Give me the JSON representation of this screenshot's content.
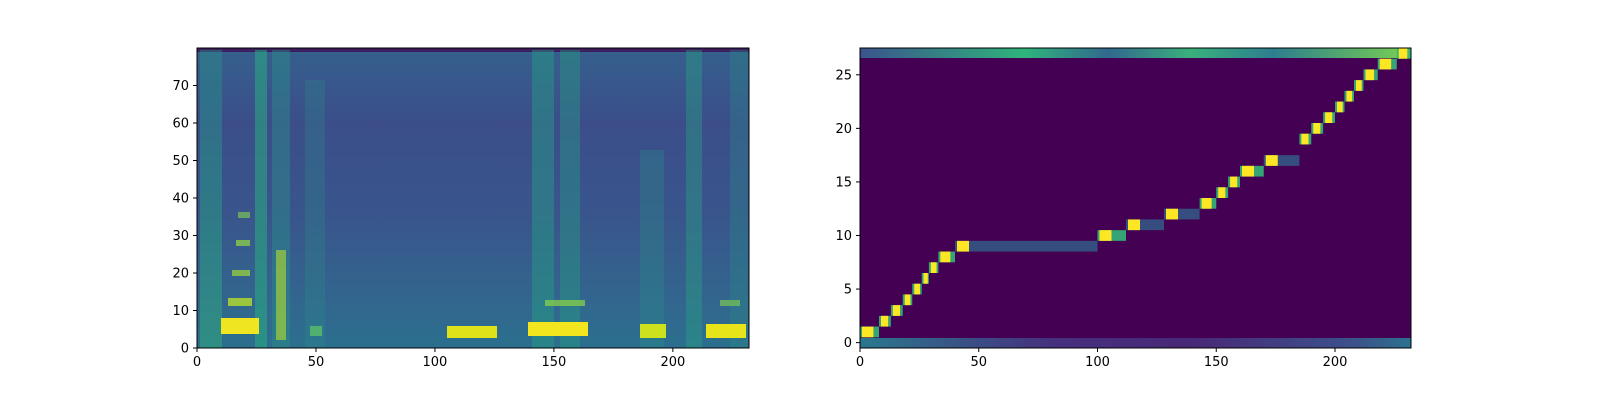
{
  "chart_data": [
    {
      "type": "heatmap",
      "name": "mel-spectrogram",
      "title": "",
      "xlabel": "",
      "ylabel": "",
      "xlim": [
        0,
        232
      ],
      "ylim": [
        0,
        80
      ],
      "xticks": [
        0,
        50,
        100,
        150,
        200
      ],
      "yticks": [
        0,
        10,
        20,
        30,
        40,
        50,
        60,
        70
      ],
      "colormap": "viridis",
      "description_regions": {
        "low_band_bright": [
          [
            10,
            26
          ],
          [
            107,
            127
          ],
          [
            140,
            164
          ],
          [
            185,
            197
          ],
          [
            214,
            230
          ]
        ],
        "vertical_streaks": [
          4,
          27,
          36,
          48,
          146,
          158,
          188,
          215,
          228
        ]
      }
    },
    {
      "type": "heatmap",
      "name": "attention-alignment",
      "title": "",
      "xlabel": "",
      "ylabel": "",
      "xlim": [
        0,
        232
      ],
      "ylim": [
        -0.5,
        27.5
      ],
      "xticks": [
        0,
        50,
        100,
        150,
        200
      ],
      "yticks": [
        0,
        5,
        10,
        15,
        20,
        25
      ],
      "colormap": "viridis",
      "alignment_path": [
        {
          "x": 0,
          "y": 1
        },
        {
          "x": 8,
          "y": 2
        },
        {
          "x": 13,
          "y": 3
        },
        {
          "x": 18,
          "y": 4
        },
        {
          "x": 22,
          "y": 5
        },
        {
          "x": 26,
          "y": 6
        },
        {
          "x": 29,
          "y": 7
        },
        {
          "x": 33,
          "y": 8
        },
        {
          "x": 40,
          "y": 9
        },
        {
          "x": 100,
          "y": 10
        },
        {
          "x": 112,
          "y": 11
        },
        {
          "x": 128,
          "y": 12
        },
        {
          "x": 143,
          "y": 13
        },
        {
          "x": 150,
          "y": 14
        },
        {
          "x": 155,
          "y": 15
        },
        {
          "x": 160,
          "y": 16
        },
        {
          "x": 170,
          "y": 17
        },
        {
          "x": 185,
          "y": 19
        },
        {
          "x": 190,
          "y": 20
        },
        {
          "x": 195,
          "y": 21
        },
        {
          "x": 200,
          "y": 22
        },
        {
          "x": 204,
          "y": 23
        },
        {
          "x": 208,
          "y": 24
        },
        {
          "x": 212,
          "y": 25
        },
        {
          "x": 218,
          "y": 26
        },
        {
          "x": 226,
          "y": 27
        }
      ],
      "bright_rows": [
        0,
        27
      ]
    }
  ]
}
